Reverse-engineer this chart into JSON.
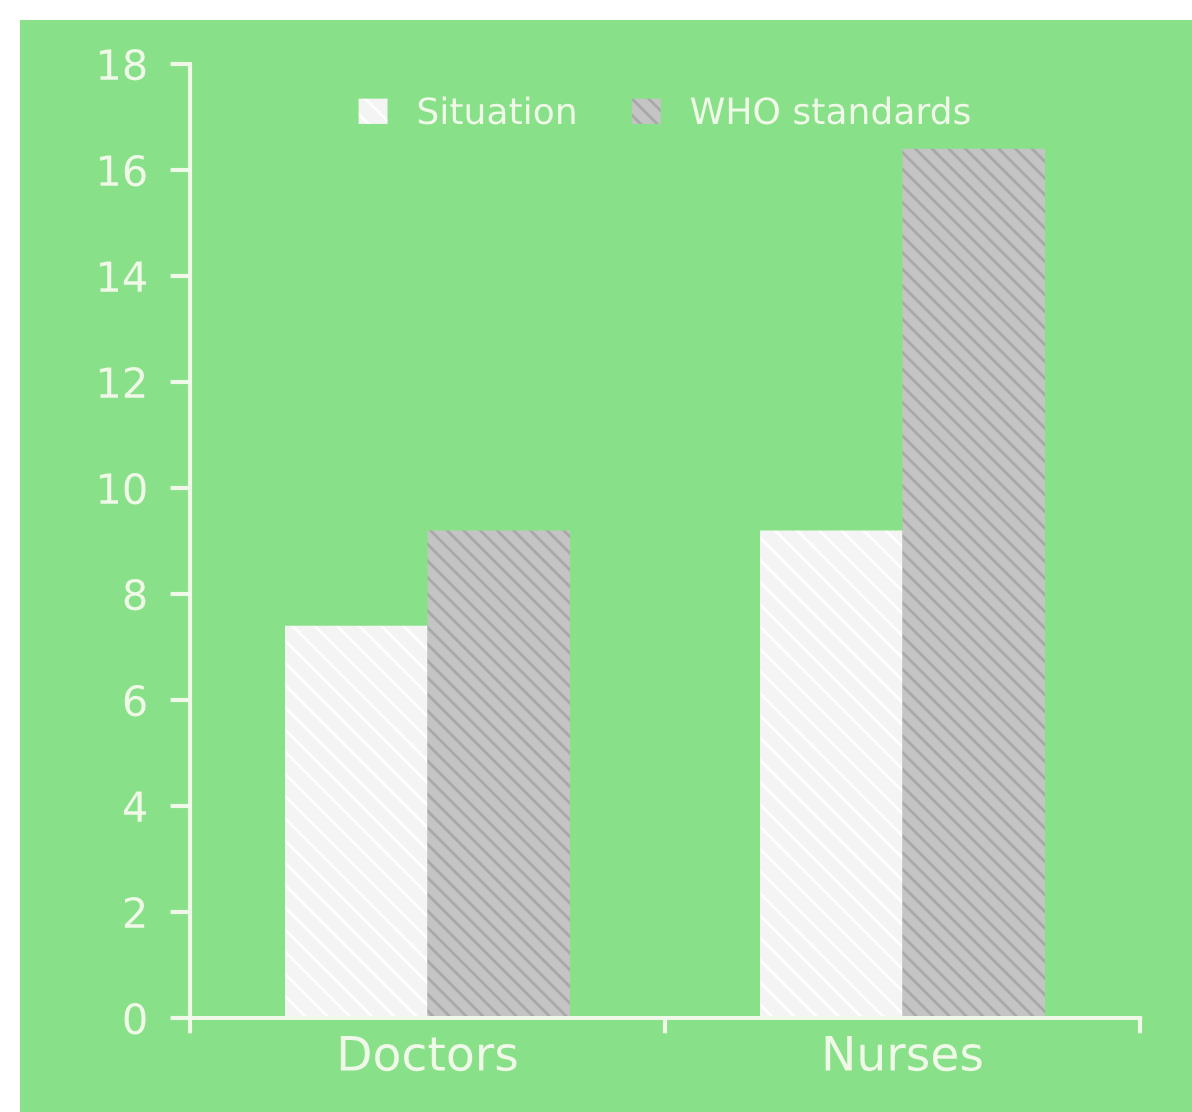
{
  "chart_data": {
    "type": "bar",
    "categories": [
      "Doctors",
      "Nurses"
    ],
    "series": [
      {
        "name": "Situation",
        "color": "#f4f4f4",
        "values": [
          7.4,
          9.2
        ]
      },
      {
        "name": "WHO standards",
        "color": "#c4c4c4",
        "values": [
          9.2,
          16.4
        ]
      }
    ],
    "ylim": [
      0,
      18
    ],
    "yticks": [
      0,
      2,
      4,
      6,
      8,
      10,
      12,
      14,
      16,
      18
    ],
    "grid": false,
    "legend": "top"
  }
}
